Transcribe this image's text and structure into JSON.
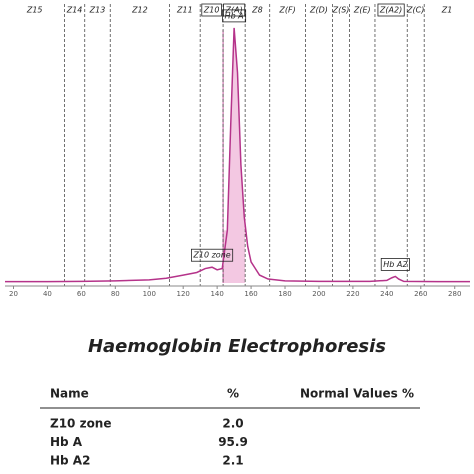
{
  "chart_data": {
    "type": "line",
    "x": [
      15,
      40,
      60,
      80,
      100,
      110,
      120,
      128,
      133,
      137,
      140,
      143,
      146,
      148,
      150,
      152,
      154,
      156,
      158,
      160,
      165,
      170,
      180,
      200,
      230,
      240,
      243,
      245,
      247,
      250,
      270,
      289
    ],
    "values": [
      0.5,
      0.5,
      0.6,
      0.8,
      1.2,
      1.8,
      3,
      4,
      5.5,
      6,
      5,
      5.5,
      20,
      60,
      97,
      80,
      45,
      25,
      14,
      8,
      3,
      1.5,
      0.8,
      0.6,
      0.6,
      1,
      2,
      2.5,
      1.5,
      0.6,
      0.5,
      0.5
    ],
    "color": "#b5338a",
    "fill_color": "#f3c8e2",
    "xlim": [
      15,
      289
    ],
    "ylim": [
      0,
      100
    ],
    "xticks": [
      20,
      40,
      60,
      80,
      100,
      120,
      140,
      160,
      180,
      200,
      220,
      240,
      260,
      280
    ],
    "zones": [
      {
        "label": "Z15",
        "from": 15,
        "to": 50
      },
      {
        "label": "Z14",
        "from": 50,
        "to": 62
      },
      {
        "label": "Z13",
        "from": 62,
        "to": 77
      },
      {
        "label": "Z12",
        "from": 77,
        "to": 112
      },
      {
        "label": "Z11",
        "from": 112,
        "to": 130
      },
      {
        "label": "Z10",
        "from": 130,
        "to": 143.5,
        "boxed": true
      },
      {
        "label": "Z(A)",
        "from": 143.5,
        "to": 156.5,
        "boxed": true,
        "shaded": true
      },
      {
        "label": "Z8",
        "from": 156.5,
        "to": 171
      },
      {
        "label": "Z(F)",
        "from": 171,
        "to": 192
      },
      {
        "label": "Z(D)",
        "from": 192,
        "to": 208
      },
      {
        "label": "Z(S)",
        "from": 208,
        "to": 218
      },
      {
        "label": "Z(E)",
        "from": 218,
        "to": 233
      },
      {
        "label": "Z(A2)",
        "from": 233,
        "to": 252,
        "boxed": true
      },
      {
        "label": "Z(C)",
        "from": 252,
        "to": 262
      },
      {
        "label": "Z1",
        "from": 262,
        "to": 289
      }
    ],
    "annotations": [
      {
        "text": "Z10 zone",
        "x": 137
      },
      {
        "text": "Hb A",
        "x": 150
      },
      {
        "text": "Hb A2",
        "x": 245
      }
    ]
  },
  "table": {
    "title": "Haemoglobin Electrophoresis",
    "header": [
      "Name",
      "%",
      "Normal Values %"
    ],
    "rows": [
      [
        "Z10 zone",
        "2.0"
      ],
      [
        "Hb A",
        "95.9"
      ],
      [
        "Hb A2",
        "2.1"
      ]
    ]
  }
}
